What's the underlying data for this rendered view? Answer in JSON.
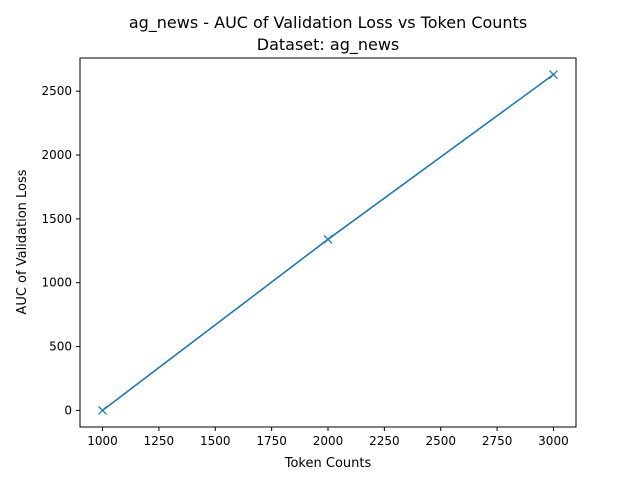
{
  "chart_data": {
    "type": "line",
    "title": "ag_news - AUC of Validation Loss vs Token Counts",
    "subtitle": "Dataset: ag_news",
    "xlabel": "Token Counts",
    "ylabel": "AUC of Validation Loss",
    "xlim": [
      900,
      3100
    ],
    "ylim": [
      -130,
      2760
    ],
    "xticks": [
      1000,
      1250,
      1500,
      1750,
      2000,
      2250,
      2500,
      2750,
      3000
    ],
    "yticks": [
      0,
      500,
      1000,
      1500,
      2000,
      2500
    ],
    "grid": false,
    "series": [
      {
        "color": "#1f77b4",
        "marker": "x",
        "points": [
          {
            "x": 1000,
            "y": 0
          },
          {
            "x": 2000,
            "y": 1340
          },
          {
            "x": 3000,
            "y": 2630
          }
        ]
      }
    ]
  }
}
